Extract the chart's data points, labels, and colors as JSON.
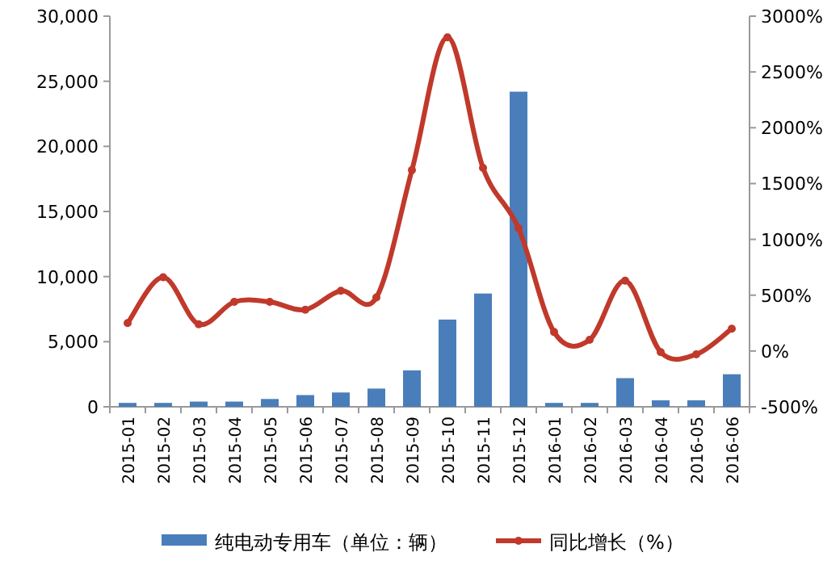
{
  "chart_data": {
    "type": "bar",
    "categories": [
      "2015-01",
      "2015-02",
      "2015-03",
      "2015-04",
      "2015-05",
      "2015-06",
      "2015-07",
      "2015-08",
      "2015-09",
      "2015-10",
      "2015-11",
      "2015-12",
      "2016-01",
      "2016-02",
      "2016-03",
      "2016-04",
      "2016-05",
      "2016-06"
    ],
    "series": [
      {
        "name": "纯电动专用车（单位：辆）",
        "color": "#4a7ebb",
        "values": [
          300,
          300,
          400,
          400,
          600,
          900,
          1100,
          1400,
          2800,
          6700,
          8700,
          24200,
          300,
          300,
          2200,
          500,
          500,
          2500
        ]
      },
      {
        "name": "同比增长（%）",
        "type": "line",
        "axis": "y2",
        "color": "#c0392b",
        "marker": "circle",
        "values": [
          250,
          660,
          240,
          440,
          440,
          370,
          540,
          480,
          1620,
          2810,
          1640,
          1100,
          170,
          100,
          630,
          -10,
          -30,
          200
        ]
      }
    ],
    "ylim": [
      0,
      30000
    ],
    "yticks": [
      0,
      {
        "value": 5000,
        "label": "5,000"
      },
      {
        "value": 10000,
        "label": "10,000"
      },
      {
        "value": 15000,
        "label": "15,000"
      },
      {
        "value": 20000,
        "label": "20,000"
      },
      {
        "value": 25000,
        "label": "25,000"
      },
      {
        "value": 30000,
        "label": "30,000"
      }
    ],
    "y2lim": [
      -500,
      3000
    ],
    "y2ticks": [
      {
        "value": -500,
        "label": "-500%"
      },
      {
        "value": 0,
        "label": "0%"
      },
      {
        "value": 500,
        "label": "500%"
      },
      {
        "value": 1000,
        "label": "1000%"
      },
      {
        "value": 1500,
        "label": "1500%"
      },
      {
        "value": 2000,
        "label": "2000%"
      },
      {
        "value": 2500,
        "label": "2500%"
      },
      {
        "value": 3000,
        "label": "3000%"
      }
    ],
    "grid": false,
    "legend": "bottom"
  }
}
